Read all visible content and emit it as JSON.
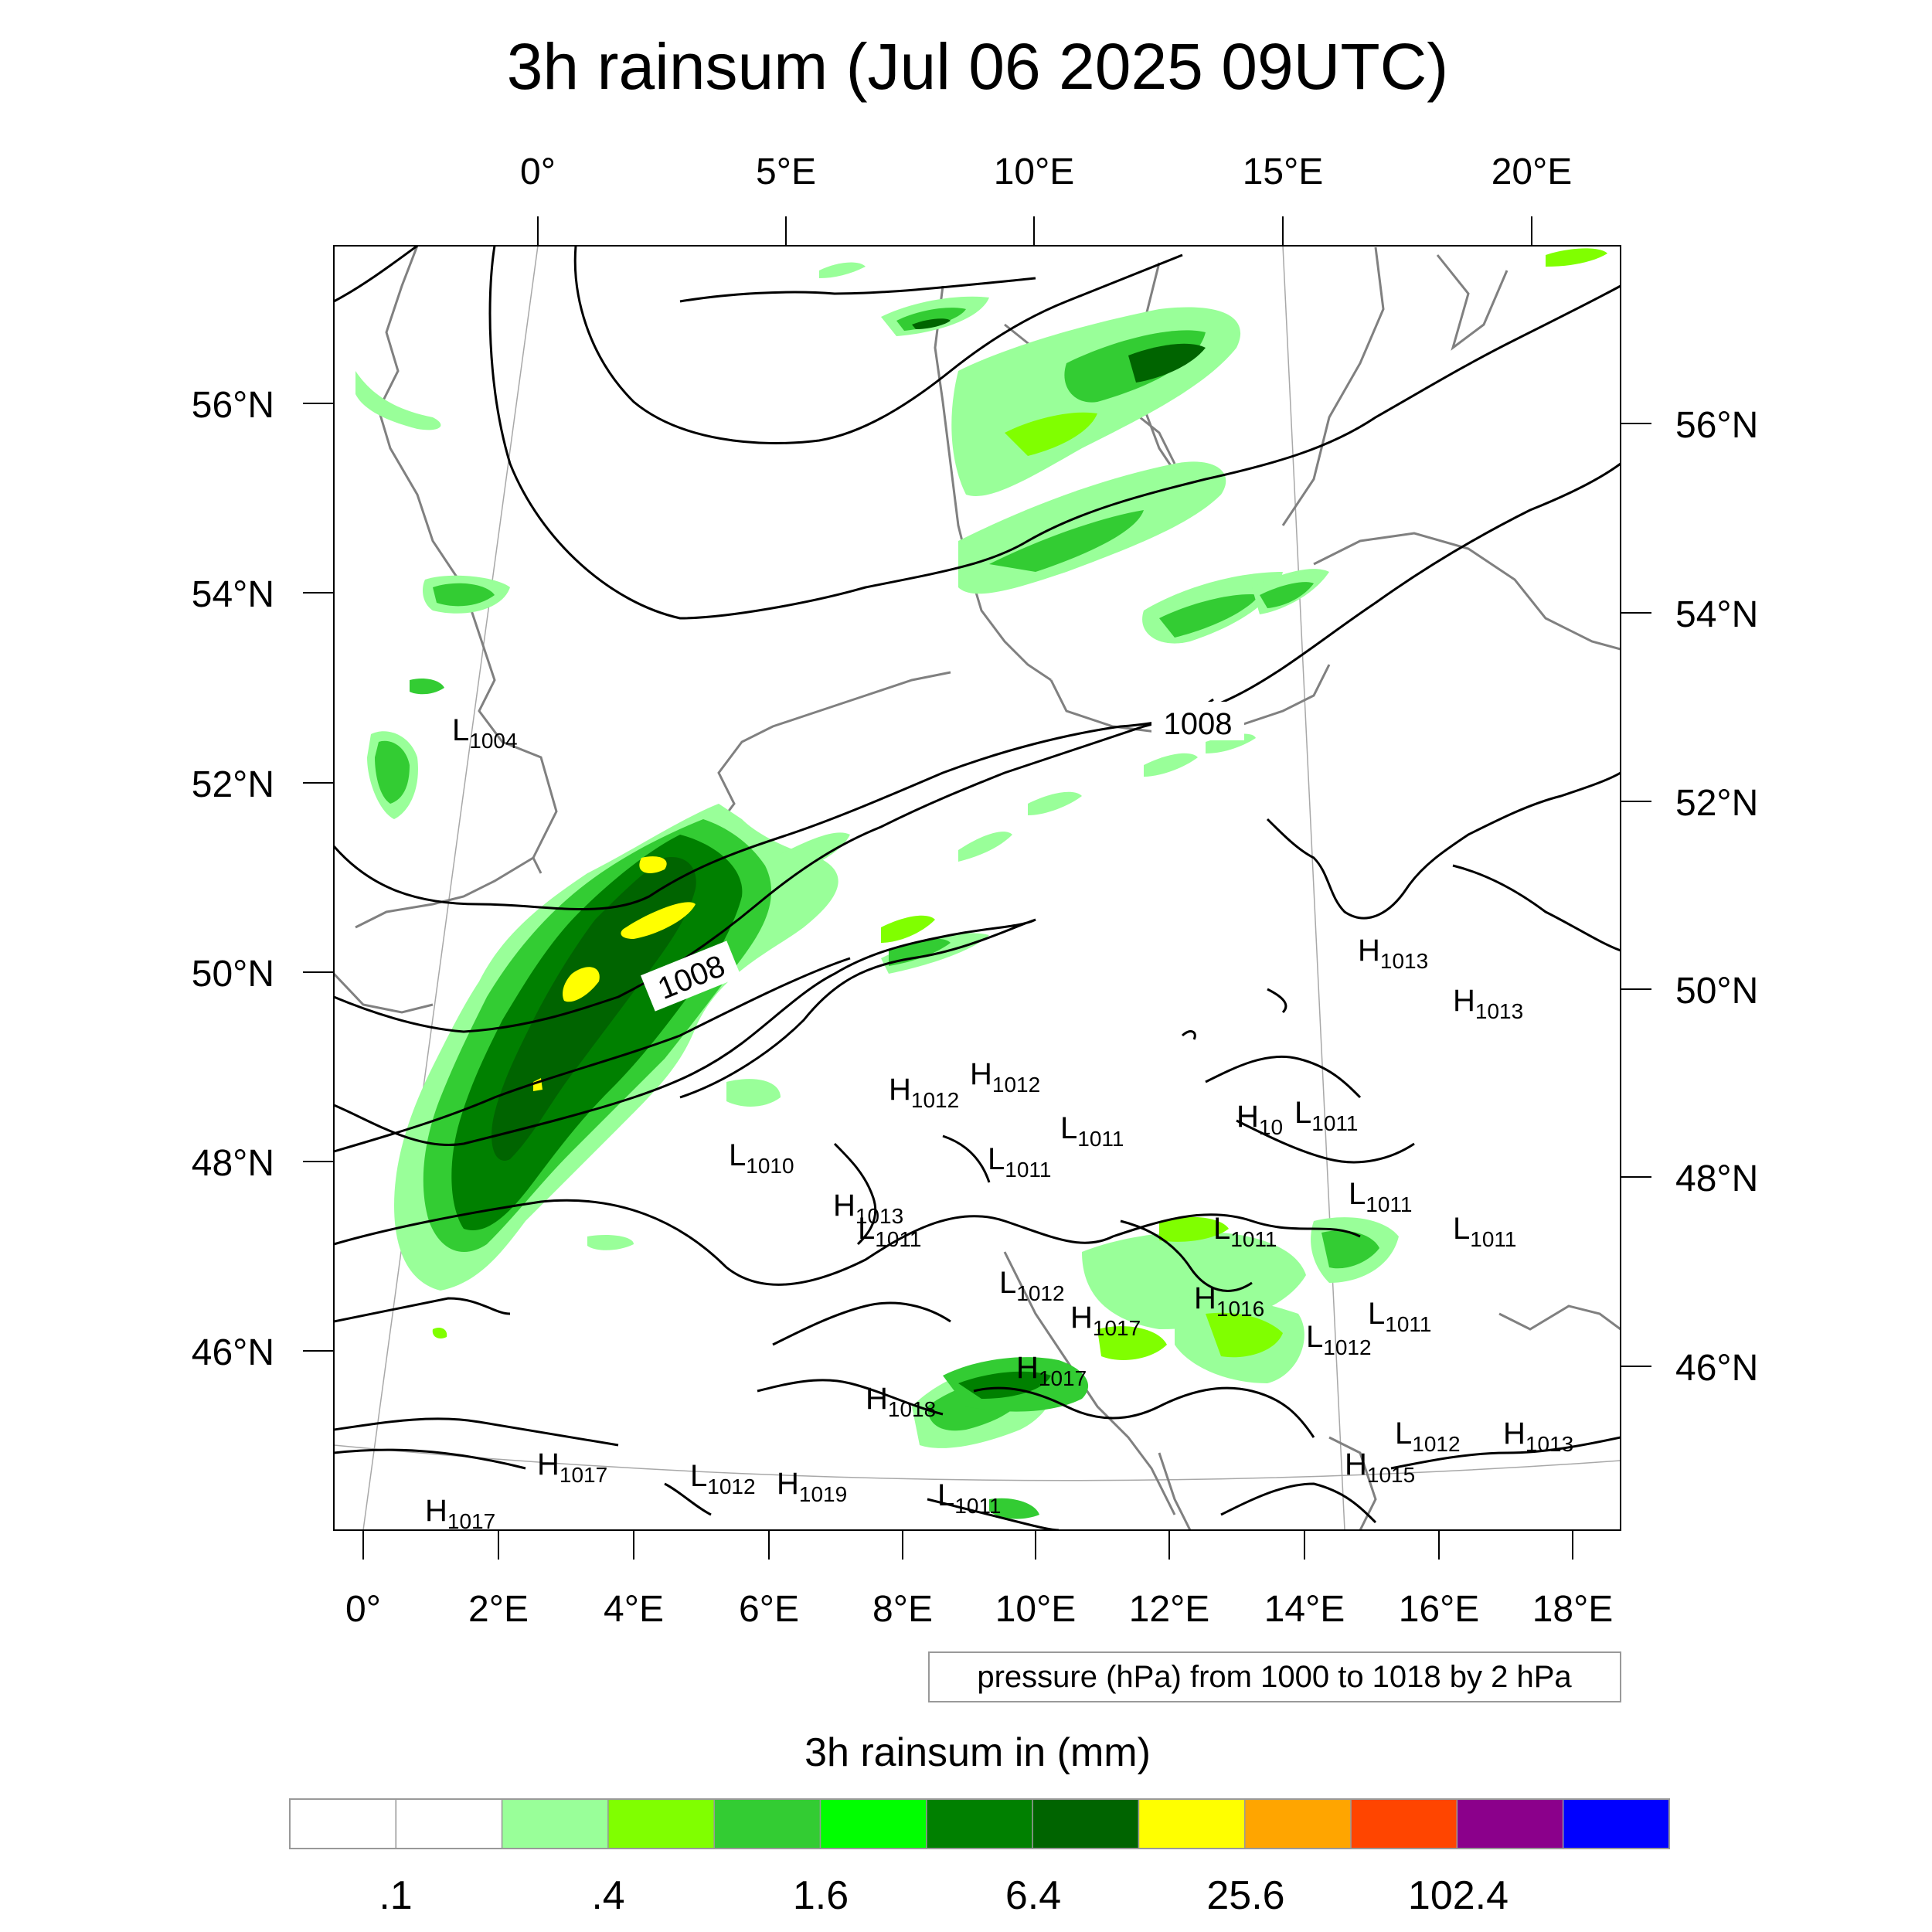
{
  "title": "3h rainsum (Jul 06 2025 09UTC)",
  "top_lon_labels": [
    "0°",
    "5°E",
    "10°E",
    "15°E",
    "20°E"
  ],
  "bottom_lon_labels": [
    "0°",
    "2°E",
    "4°E",
    "6°E",
    "8°E",
    "10°E",
    "12°E",
    "14°E",
    "16°E",
    "18°E"
  ],
  "left_lat_labels": [
    "56°N",
    "54°N",
    "52°N",
    "50°N",
    "48°N",
    "46°N"
  ],
  "right_lat_labels": [
    "56°N",
    "54°N",
    "52°N",
    "50°N",
    "48°N",
    "46°N"
  ],
  "isobar_info": "pressure (hPa) from 1000 to 1018 by 2 hPa",
  "contour_labels": [
    "1008",
    "1008"
  ],
  "pressure_centers": [
    {
      "kind": "L",
      "value": "1004"
    },
    {
      "kind": "L",
      "value": "1010"
    },
    {
      "kind": "H",
      "value": "1012"
    },
    {
      "kind": "H",
      "value": "1012"
    },
    {
      "kind": "L",
      "value": "1011"
    },
    {
      "kind": "L",
      "value": "1011"
    },
    {
      "kind": "H",
      "value": "1013"
    },
    {
      "kind": "L",
      "value": "1011"
    },
    {
      "kind": "L",
      "value": "1012"
    },
    {
      "kind": "H",
      "value": "1017"
    },
    {
      "kind": "H",
      "value": "1017"
    },
    {
      "kind": "H",
      "value": "1018"
    },
    {
      "kind": "H",
      "value": "1016"
    },
    {
      "kind": "L",
      "value": "1011"
    },
    {
      "kind": "L",
      "value": "1011"
    },
    {
      "kind": "L",
      "value": "1011"
    },
    {
      "kind": "L",
      "value": "1011"
    },
    {
      "kind": "H",
      "value": "1013"
    },
    {
      "kind": "H",
      "value": "1013"
    },
    {
      "kind": "H",
      "value": "10"
    },
    {
      "kind": "L",
      "value": "1011"
    },
    {
      "kind": "L",
      "value": "1012"
    },
    {
      "kind": "L",
      "value": "1012"
    },
    {
      "kind": "H",
      "value": "1013"
    },
    {
      "kind": "H",
      "value": "1015"
    },
    {
      "kind": "H",
      "value": "1017"
    },
    {
      "kind": "H",
      "value": "1017"
    },
    {
      "kind": "L",
      "value": "1012"
    },
    {
      "kind": "H",
      "value": "1019"
    },
    {
      "kind": "L",
      "value": "1011"
    }
  ],
  "colorbar": {
    "title": "3h rainsum in (mm)",
    "colors": [
      "#ffffff",
      "#ffffff",
      "#99ff99",
      "#80ff00",
      "#33cc33",
      "#00ff00",
      "#008000",
      "#006400",
      "#ffff00",
      "#ffa500",
      "#ff4500",
      "#8b008b",
      "#0000ff"
    ],
    "tick_labels": [
      ".1",
      ".4",
      "1.6",
      "6.4",
      "25.6",
      "102.4"
    ]
  }
}
